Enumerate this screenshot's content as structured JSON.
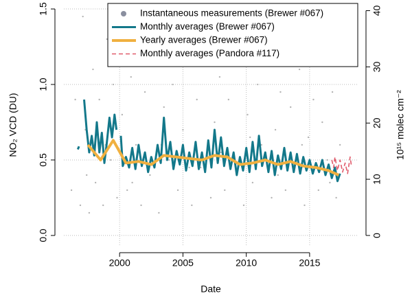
{
  "chart_data": {
    "type": "line",
    "x_label": "Date",
    "y_label": "NO₂ VCD (DU)",
    "y2_label": "10¹⁵ molec cm⁻²",
    "xlim": [
      1995.6,
      2018.8
    ],
    "xticks": [
      2000,
      2005,
      2010,
      2015
    ],
    "ylim": [
      -0.064,
      1.523
    ],
    "yticks": [
      {
        "value": 0,
        "label": "0.0"
      },
      0.5,
      {
        "value": 1,
        "label": "1.0"
      },
      1.5
    ],
    "y2lim": [
      -1.72,
      40.92
    ],
    "y2ticks": [
      0,
      10,
      20,
      30,
      40
    ],
    "grid": true,
    "legend": "top-right",
    "series": [
      {
        "name": "Instantaneous measurements (Brewer #067)",
        "color": "#b4b4b4",
        "style": "points",
        "x": [
          1996.2,
          1996.5,
          1996.9,
          1997.1,
          1997.3,
          1997.6,
          1997.9,
          1998.1,
          1998.4,
          1998.7,
          1999.0,
          1999.3,
          1999.5,
          1999.8,
          2000.2,
          2000.6,
          2000.9,
          2001.3,
          2001.7,
          2002.0,
          2002.4,
          2002.8,
          2003.1,
          2003.5,
          2003.9,
          2004.2,
          2004.6,
          2005.0,
          2005.3,
          2005.7,
          2006.1,
          2006.4,
          2006.8,
          2007.2,
          2007.5,
          2007.9,
          2008.3,
          2008.6,
          2009.0,
          2009.4,
          2009.8,
          2010.1,
          2010.5,
          2010.9,
          2011.2,
          2011.6,
          2012.0,
          2012.3,
          2012.7,
          2013.1,
          2013.5,
          2013.8,
          2014.2,
          2014.6,
          2014.9,
          2015.3,
          2015.7,
          2016.0,
          2016.4,
          2016.8,
          2017.1,
          2017.4,
          1997.4,
          1998.9,
          2001.0,
          2003.3,
          2005.5,
          2008.0,
          2010.3,
          2012.5,
          2014.4,
          2016.6
        ],
        "values": [
          0.3,
          0.9,
          0.2,
          1.45,
          0.7,
          0.15,
          1.1,
          0.35,
          0.9,
          0.2,
          1.3,
          0.5,
          1.0,
          0.25,
          0.8,
          0.3,
          1.05,
          0.6,
          0.2,
          0.95,
          0.4,
          1.2,
          0.15,
          0.85,
          0.5,
          1.0,
          0.3,
          0.7,
          1.15,
          0.2,
          0.9,
          0.45,
          1.3,
          0.25,
          0.75,
          1.05,
          0.3,
          0.9,
          0.55,
          1.2,
          0.2,
          0.8,
          0.35,
          1.0,
          0.6,
          1.25,
          0.25,
          0.7,
          0.95,
          0.3,
          0.85,
          0.45,
          1.1,
          0.2,
          0.65,
          0.9,
          0.3,
          0.75,
          0.5,
          0.95,
          0.25,
          0.6,
          0.4,
          0.6,
          0.35,
          0.6,
          0.45,
          0.55,
          0.65,
          0.4,
          0.6,
          0.35
        ]
      },
      {
        "name": "Monthly averages (Brewer #067)",
        "color": "#13788a",
        "style": "line",
        "x": [
          1996.7,
          1996.8,
          1997.0,
          1997.2,
          1997.4,
          1997.6,
          1997.8,
          1998.0,
          1998.2,
          1998.4,
          1998.6,
          1998.8,
          1999.0,
          1999.2,
          1999.4,
          1999.6,
          1999.75,
          1999.9,
          2000.1,
          2000.25,
          2000.5,
          2000.75,
          2001.0,
          2001.25,
          2001.5,
          2001.75,
          2002.0,
          2002.25,
          2002.5,
          2002.75,
          2003.0,
          2003.25,
          2003.5,
          2003.75,
          2004.0,
          2004.25,
          2004.5,
          2004.75,
          2005.0,
          2005.25,
          2005.5,
          2005.75,
          2006.0,
          2006.25,
          2006.5,
          2006.75,
          2007.0,
          2007.25,
          2007.5,
          2007.75,
          2008.0,
          2008.25,
          2008.5,
          2008.75,
          2009.0,
          2009.25,
          2009.5,
          2009.75,
          2010.0,
          2010.25,
          2010.5,
          2010.75,
          2011.0,
          2011.25,
          2011.5,
          2011.75,
          2012.0,
          2012.25,
          2012.5,
          2012.75,
          2013.0,
          2013.25,
          2013.5,
          2013.75,
          2014.0,
          2014.25,
          2014.5,
          2014.75,
          2015.0,
          2015.25,
          2015.5,
          2015.75,
          2016.0,
          2016.25,
          2016.5,
          2016.75,
          2017.0,
          2017.2,
          2017.4
        ],
        "values": [
          0.57,
          0.59,
          null,
          0.9,
          0.7,
          0.55,
          0.66,
          0.53,
          0.75,
          0.55,
          0.68,
          0.48,
          0.62,
          0.78,
          0.65,
          0.8,
          0.7,
          null,
          0.66,
          0.46,
          0.52,
          0.45,
          0.58,
          0.44,
          0.6,
          0.46,
          0.55,
          0.42,
          0.52,
          0.45,
          0.6,
          0.48,
          0.78,
          0.5,
          0.62,
          0.44,
          0.56,
          0.47,
          0.6,
          0.43,
          0.55,
          0.46,
          0.62,
          0.44,
          0.55,
          0.42,
          0.63,
          0.45,
          0.7,
          0.48,
          0.65,
          0.46,
          0.58,
          0.44,
          0.55,
          0.4,
          0.52,
          0.43,
          0.58,
          0.42,
          0.62,
          0.44,
          0.66,
          0.46,
          0.55,
          0.42,
          0.56,
          0.4,
          0.53,
          0.44,
          0.58,
          0.43,
          0.55,
          0.42,
          0.54,
          0.41,
          0.52,
          0.43,
          0.5,
          0.41,
          0.48,
          0.42,
          0.5,
          0.4,
          0.47,
          0.38,
          0.45,
          0.36,
          0.41
        ]
      },
      {
        "name": "Yearly averages (Brewer #067)",
        "color": "#f0b040",
        "style": "thick",
        "x": [
          1997.5,
          1998.5,
          1999.5,
          2000.5,
          2001.5,
          2002.5,
          2003.5,
          2004.5,
          2005.5,
          2006.5,
          2007.5,
          2008.5,
          2009.5,
          2010.5,
          2011.5,
          2012.5,
          2013.5,
          2014.5,
          2015.5,
          2016.5,
          2017.3
        ],
        "values": [
          0.6,
          0.5,
          0.63,
          0.48,
          0.49,
          0.47,
          0.53,
          0.52,
          0.51,
          0.5,
          0.53,
          0.52,
          0.47,
          0.48,
          0.5,
          0.47,
          0.49,
          0.46,
          0.45,
          0.43,
          0.4
        ]
      },
      {
        "name": "Monthly averages (Pandora #117)",
        "color": "#e05a6a",
        "style": "dashed",
        "x": [
          2016.75,
          2016.9,
          2017.0,
          2017.2,
          2017.4,
          2017.6,
          2017.8,
          2018.0,
          2018.2,
          2018.3
        ],
        "values": [
          0.5,
          0.45,
          0.52,
          0.43,
          0.5,
          0.42,
          0.48,
          0.41,
          0.52,
          0.46
        ]
      }
    ]
  }
}
